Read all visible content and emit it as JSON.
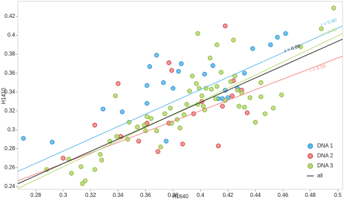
{
  "chart_data": {
    "type": "scatter",
    "x_label": "H1640",
    "y_label": "H1410",
    "xlim": [
      0.267,
      0.5035
    ],
    "ylim": [
      0.237,
      0.436
    ],
    "xticks": [
      0.28,
      0.3,
      0.32,
      0.34,
      0.36,
      0.38,
      0.4,
      0.42,
      0.44,
      0.46,
      0.48,
      0.5
    ],
    "yticks": [
      0.24,
      0.26,
      0.28,
      0.3,
      0.32,
      0.34,
      0.36,
      0.38,
      0.4,
      0.42
    ],
    "legend": "lower right",
    "series": [
      {
        "name": "DNA 1",
        "color": "#5ab8ea",
        "edge": "#2d8fd2",
        "x": [
          0.271,
          0.292,
          0.329,
          0.343,
          0.361,
          0.361,
          0.363,
          0.368,
          0.373,
          0.375,
          0.38,
          0.384,
          0.386,
          0.403,
          0.409,
          0.413,
          0.416,
          0.418,
          0.42,
          0.427,
          0.432,
          0.438,
          0.451,
          0.456,
          0.462
        ],
        "values": [
          0.291,
          0.287,
          0.322,
          0.319,
          0.328,
          0.347,
          0.367,
          0.379,
          0.35,
          0.288,
          0.344,
          0.362,
          0.37,
          0.359,
          0.368,
          0.333,
          0.333,
          0.342,
          0.334,
          0.344,
          0.36,
          0.386,
          0.39,
          0.398,
          0.402
        ],
        "fit": {
          "x": [
            0.267,
            0.5035
          ],
          "values": [
            0.256,
            0.41
          ],
          "label": "r = 0.80"
        }
      },
      {
        "name": "DNA 2",
        "color": "#f08a8a",
        "edge": "#d23a3a",
        "x": [
          0.3,
          0.323,
          0.34,
          0.342,
          0.355,
          0.361,
          0.369,
          0.377,
          0.379,
          0.387,
          0.395,
          0.401,
          0.418,
          0.413,
          0.416,
          0.423,
          0.424,
          0.43,
          0.434,
          0.377
        ],
        "values": [
          0.27,
          0.305,
          0.349,
          0.293,
          0.288,
          0.307,
          0.277,
          0.371,
          0.363,
          0.285,
          0.317,
          0.33,
          0.41,
          0.283,
          0.325,
          0.336,
          0.352,
          0.342,
          0.318,
          0.307
        ],
        "fit": {
          "x": [
            0.267,
            0.5035
          ],
          "values": [
            0.246,
            0.378
          ],
          "label": "r = 0.58"
        }
      },
      {
        "name": "DNA 3",
        "color": "#b8da6c",
        "edge": "#86b43a",
        "x": [
          0.288,
          0.304,
          0.306,
          0.313,
          0.316,
          0.314,
          0.323,
          0.327,
          0.328,
          0.334,
          0.338,
          0.339,
          0.347,
          0.348,
          0.354,
          0.359,
          0.361,
          0.36,
          0.364,
          0.368,
          0.371,
          0.374,
          0.378,
          0.379,
          0.383,
          0.385,
          0.388,
          0.39,
          0.392,
          0.394,
          0.397,
          0.398,
          0.399,
          0.401,
          0.402,
          0.403,
          0.404,
          0.407,
          0.408,
          0.411,
          0.412,
          0.415,
          0.418,
          0.422,
          0.425,
          0.427,
          0.428,
          0.43,
          0.432,
          0.436,
          0.44,
          0.444,
          0.447,
          0.412,
          0.398,
          0.424,
          0.459,
          0.473,
          0.497,
          0.488,
          0.444,
          0.453
        ],
        "values": [
          0.258,
          0.269,
          0.254,
          0.261,
          0.246,
          0.243,
          0.258,
          0.274,
          0.268,
          0.288,
          0.336,
          0.293,
          0.29,
          0.308,
          0.303,
          0.305,
          0.314,
          0.299,
          0.312,
          0.299,
          0.282,
          0.317,
          0.323,
          0.307,
          0.311,
          0.302,
          0.316,
          0.327,
          0.341,
          0.357,
          0.349,
          0.327,
          0.344,
          0.336,
          0.325,
          0.321,
          0.344,
          0.376,
          0.343,
          0.333,
          0.346,
          0.361,
          0.331,
          0.351,
          0.357,
          0.342,
          0.325,
          0.339,
          0.324,
          0.334,
          0.308,
          0.35,
          0.317,
          0.39,
          0.402,
          0.395,
          0.337,
          0.388,
          0.429,
          0.407,
          0.335,
          0.323
        ],
        "fit": {
          "x": [
            0.267,
            0.5035
          ],
          "values": [
            0.238,
            0.402
          ],
          "label": "r = 0.86"
        }
      },
      {
        "name": "all",
        "color": "#222222",
        "fit": {
          "x": [
            0.267,
            0.5035
          ],
          "values": [
            0.243,
            0.396
          ],
          "label": "r = 0.80"
        }
      }
    ]
  }
}
